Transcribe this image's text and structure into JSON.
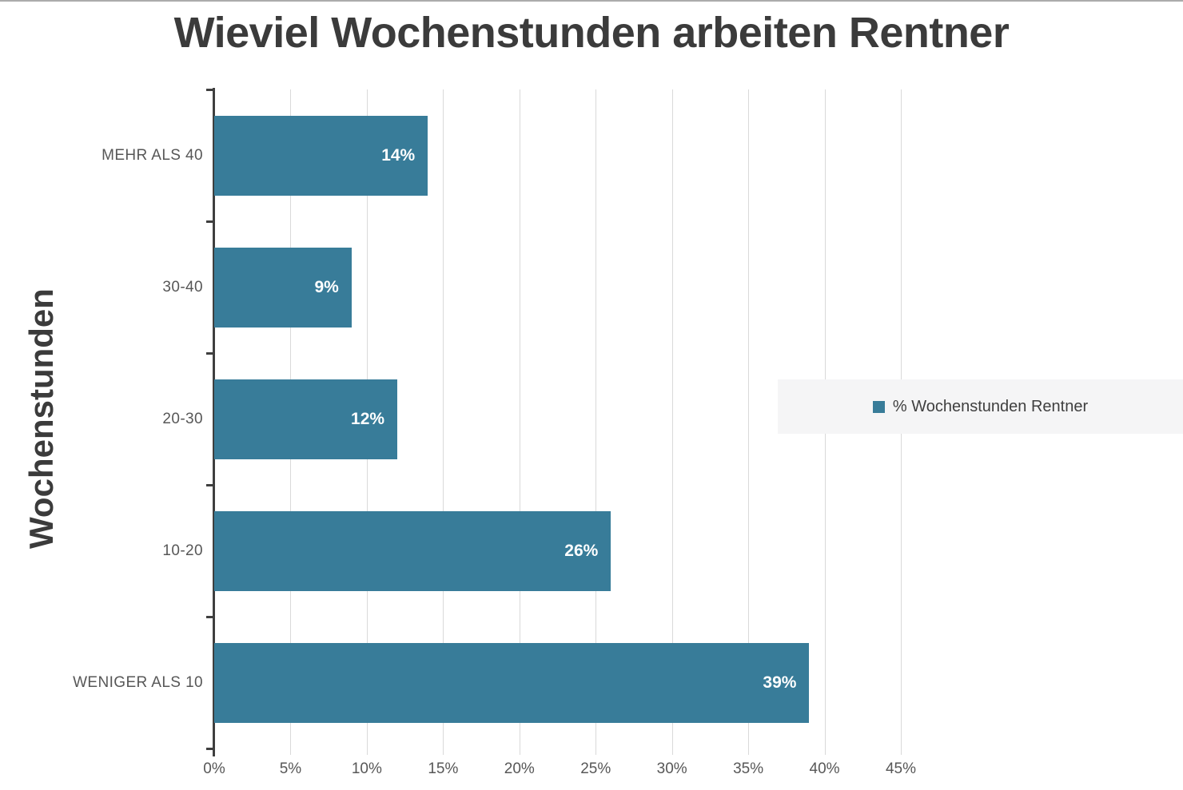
{
  "title": "Wieviel Wochenstunden arbeiten Rentner",
  "chart_data": {
    "type": "bar",
    "orientation": "horizontal",
    "title": "Wieviel Wochenstunden arbeiten Rentner",
    "categories": [
      "MEHR ALS 40",
      "30-40",
      "20-30",
      "10-20",
      "WENIGER ALS 10"
    ],
    "values": [
      14,
      9,
      12,
      26,
      39
    ],
    "value_labels": [
      "14%",
      "9%",
      "12%",
      "26%",
      "39%"
    ],
    "series_name": "% Wochenstunden Rentner",
    "xlabel": "",
    "ylabel": "Wochenstunden",
    "xlim": [
      0,
      45
    ],
    "x_tick_values": [
      0,
      5,
      10,
      15,
      20,
      25,
      30,
      35,
      40,
      45
    ],
    "x_tick_labels": [
      "0%",
      "5%",
      "10%",
      "15%",
      "20%",
      "25%",
      "30%",
      "35%",
      "40%",
      "45%"
    ],
    "grid": "vertical",
    "legend_position": "middle-right",
    "data_labels": "inside-end"
  },
  "colors": {
    "bar": "#387c99",
    "title": "#3b3b3b",
    "axis_line": "#3f3f3f",
    "gridline": "#d9d9d9",
    "tick_label": "#575757",
    "data_label": "#ffffff",
    "legend_bg": "#f5f5f6"
  }
}
